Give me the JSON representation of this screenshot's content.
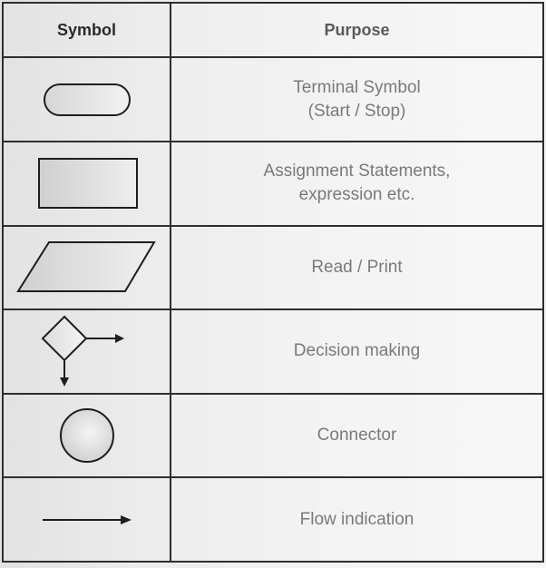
{
  "header": {
    "symbol": "Symbol",
    "purpose": "Purpose"
  },
  "rows": [
    {
      "symbol_icon": "terminal-icon",
      "purpose": [
        "Terminal Symbol",
        "(Start / Stop)"
      ]
    },
    {
      "symbol_icon": "process-rectangle-icon",
      "purpose": [
        "Assignment Statements,",
        "expression etc."
      ]
    },
    {
      "symbol_icon": "input-output-parallelogram-icon",
      "purpose": [
        "Read / Print"
      ]
    },
    {
      "symbol_icon": "decision-diamond-icon",
      "purpose": [
        "Decision making"
      ]
    },
    {
      "symbol_icon": "connector-circle-icon",
      "purpose": [
        "Connector"
      ]
    },
    {
      "symbol_icon": "flow-arrow-icon",
      "purpose": [
        "Flow indication"
      ]
    }
  ]
}
